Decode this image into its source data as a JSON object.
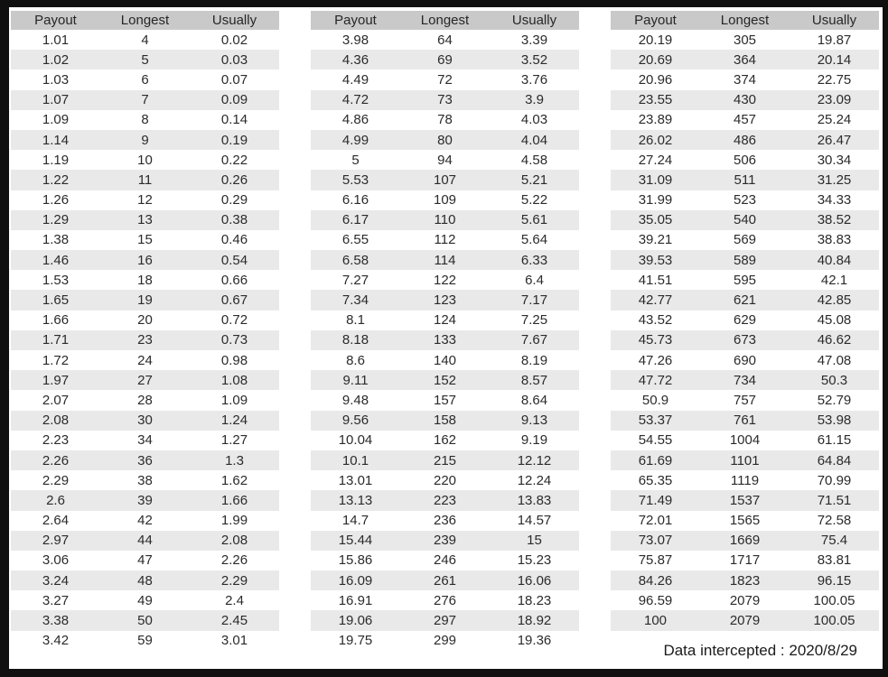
{
  "window": {
    "frame_color": "#101010",
    "content_background": "#ffffff"
  },
  "style": {
    "header_background": "#c9c9c9",
    "alt_row_background": "#e9e9e9",
    "text_color": "#2b2b2b"
  },
  "columns": [
    "Payout",
    "Longest",
    "Usually"
  ],
  "tables": [
    {
      "name": "left",
      "rows": [
        [
          "1.01",
          "4",
          "0.02"
        ],
        [
          "1.02",
          "5",
          "0.03"
        ],
        [
          "1.03",
          "6",
          "0.07"
        ],
        [
          "1.07",
          "7",
          "0.09"
        ],
        [
          "1.09",
          "8",
          "0.14"
        ],
        [
          "1.14",
          "9",
          "0.19"
        ],
        [
          "1.19",
          "10",
          "0.22"
        ],
        [
          "1.22",
          "11",
          "0.26"
        ],
        [
          "1.26",
          "12",
          "0.29"
        ],
        [
          "1.29",
          "13",
          "0.38"
        ],
        [
          "1.38",
          "15",
          "0.46"
        ],
        [
          "1.46",
          "16",
          "0.54"
        ],
        [
          "1.53",
          "18",
          "0.66"
        ],
        [
          "1.65",
          "19",
          "0.67"
        ],
        [
          "1.66",
          "20",
          "0.72"
        ],
        [
          "1.71",
          "23",
          "0.73"
        ],
        [
          "1.72",
          "24",
          "0.98"
        ],
        [
          "1.97",
          "27",
          "1.08"
        ],
        [
          "2.07",
          "28",
          "1.09"
        ],
        [
          "2.08",
          "30",
          "1.24"
        ],
        [
          "2.23",
          "34",
          "1.27"
        ],
        [
          "2.26",
          "36",
          "1.3"
        ],
        [
          "2.29",
          "38",
          "1.62"
        ],
        [
          "2.6",
          "39",
          "1.66"
        ],
        [
          "2.64",
          "42",
          "1.99"
        ],
        [
          "2.97",
          "44",
          "2.08"
        ],
        [
          "3.06",
          "47",
          "2.26"
        ],
        [
          "3.24",
          "48",
          "2.29"
        ],
        [
          "3.27",
          "49",
          "2.4"
        ],
        [
          "3.38",
          "50",
          "2.45"
        ],
        [
          "3.42",
          "59",
          "3.01"
        ]
      ]
    },
    {
      "name": "middle",
      "rows": [
        [
          "3.98",
          "64",
          "3.39"
        ],
        [
          "4.36",
          "69",
          "3.52"
        ],
        [
          "4.49",
          "72",
          "3.76"
        ],
        [
          "4.72",
          "73",
          "3.9"
        ],
        [
          "4.86",
          "78",
          "4.03"
        ],
        [
          "4.99",
          "80",
          "4.04"
        ],
        [
          "5",
          "94",
          "4.58"
        ],
        [
          "5.53",
          "107",
          "5.21"
        ],
        [
          "6.16",
          "109",
          "5.22"
        ],
        [
          "6.17",
          "110",
          "5.61"
        ],
        [
          "6.55",
          "112",
          "5.64"
        ],
        [
          "6.58",
          "114",
          "6.33"
        ],
        [
          "7.27",
          "122",
          "6.4"
        ],
        [
          "7.34",
          "123",
          "7.17"
        ],
        [
          "8.1",
          "124",
          "7.25"
        ],
        [
          "8.18",
          "133",
          "7.67"
        ],
        [
          "8.6",
          "140",
          "8.19"
        ],
        [
          "9.11",
          "152",
          "8.57"
        ],
        [
          "9.48",
          "157",
          "8.64"
        ],
        [
          "9.56",
          "158",
          "9.13"
        ],
        [
          "10.04",
          "162",
          "9.19"
        ],
        [
          "10.1",
          "215",
          "12.12"
        ],
        [
          "13.01",
          "220",
          "12.24"
        ],
        [
          "13.13",
          "223",
          "13.83"
        ],
        [
          "14.7",
          "236",
          "14.57"
        ],
        [
          "15.44",
          "239",
          "15"
        ],
        [
          "15.86",
          "246",
          "15.23"
        ],
        [
          "16.09",
          "261",
          "16.06"
        ],
        [
          "16.91",
          "276",
          "18.23"
        ],
        [
          "19.06",
          "297",
          "18.92"
        ],
        [
          "19.75",
          "299",
          "19.36"
        ]
      ]
    },
    {
      "name": "right",
      "rows": [
        [
          "20.19",
          "305",
          "19.87"
        ],
        [
          "20.69",
          "364",
          "20.14"
        ],
        [
          "20.96",
          "374",
          "22.75"
        ],
        [
          "23.55",
          "430",
          "23.09"
        ],
        [
          "23.89",
          "457",
          "25.24"
        ],
        [
          "26.02",
          "486",
          "26.47"
        ],
        [
          "27.24",
          "506",
          "30.34"
        ],
        [
          "31.09",
          "511",
          "31.25"
        ],
        [
          "31.99",
          "523",
          "34.33"
        ],
        [
          "35.05",
          "540",
          "38.52"
        ],
        [
          "39.21",
          "569",
          "38.83"
        ],
        [
          "39.53",
          "589",
          "40.84"
        ],
        [
          "41.51",
          "595",
          "42.1"
        ],
        [
          "42.77",
          "621",
          "42.85"
        ],
        [
          "43.52",
          "629",
          "45.08"
        ],
        [
          "45.73",
          "673",
          "46.62"
        ],
        [
          "47.26",
          "690",
          "47.08"
        ],
        [
          "47.72",
          "734",
          "50.3"
        ],
        [
          "50.9",
          "757",
          "52.79"
        ],
        [
          "53.37",
          "761",
          "53.98"
        ],
        [
          "54.55",
          "1004",
          "61.15"
        ],
        [
          "61.69",
          "1101",
          "64.84"
        ],
        [
          "65.35",
          "1119",
          "70.99"
        ],
        [
          "71.49",
          "1537",
          "71.51"
        ],
        [
          "72.01",
          "1565",
          "72.58"
        ],
        [
          "73.07",
          "1669",
          "75.4"
        ],
        [
          "75.87",
          "1717",
          "83.81"
        ],
        [
          "84.26",
          "1823",
          "96.15"
        ],
        [
          "96.59",
          "2079",
          "100.05"
        ],
        [
          "100",
          "2079",
          "100.05"
        ]
      ]
    }
  ],
  "footer": {
    "label": "Data intercepted : 2020/8/29"
  }
}
